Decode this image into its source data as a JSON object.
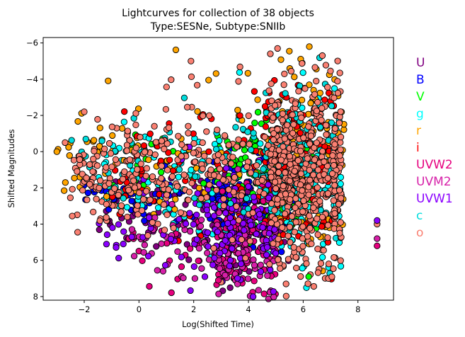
{
  "chart_data": {
    "type": "scatter",
    "title_line1": "Lightcurves for collection of 38 objects",
    "title_line2": "Type:SESNe, Subtype:SNIIb",
    "xlabel": "Log(Shifted Time)",
    "ylabel": "Shifted Magnitudes",
    "xlim": [
      -3.5,
      9.3
    ],
    "ylim": [
      -6.3,
      8.2
    ],
    "y_inverted": true,
    "x_ticks": [
      -2,
      0,
      2,
      4,
      6,
      8
    ],
    "x_tick_labels": [
      "−2",
      "0",
      "2",
      "4",
      "6",
      "8"
    ],
    "y_ticks": [
      -6,
      -4,
      -2,
      0,
      2,
      4,
      6,
      8
    ],
    "y_tick_labels": [
      "−6",
      "−4",
      "−2",
      "0",
      "2",
      "4",
      "6",
      "8"
    ],
    "grid": false,
    "legend_placement": "outside-right",
    "point_count_note": "approximate reconstruction of dense scatter",
    "series": [
      {
        "name": "U",
        "color": "#800080",
        "cloud": {
          "xmin": -1.5,
          "xmax": 5.5,
          "center": 2.2,
          "ymean": 3.5,
          "yspread": 1.6,
          "n": 140
        }
      },
      {
        "name": "B",
        "color": "#0000ff",
        "cloud": {
          "xmin": -2.1,
          "xmax": 5.7,
          "center": 2.5,
          "ymean": 2.5,
          "yspread": 1.0,
          "n": 180
        }
      },
      {
        "name": "V",
        "color": "#00ff00",
        "cloud": {
          "xmin": -1.0,
          "xmax": 6.5,
          "center": 3.5,
          "ymean": 1.0,
          "yspread": 1.4,
          "n": 150
        }
      },
      {
        "name": "g",
        "color": "#00ffff",
        "cloud": {
          "xmin": -1.5,
          "xmax": 7.4,
          "center": 5.0,
          "ymean": 1.5,
          "yspread": 2.0,
          "n": 260
        }
      },
      {
        "name": "r",
        "color": "#ffa500",
        "cloud": {
          "xmin": -3.0,
          "xmax": 7.5,
          "center": 5.0,
          "ymean": 0.5,
          "yspread": 2.2,
          "n": 240
        }
      },
      {
        "name": "i",
        "color": "#ff0000",
        "cloud": {
          "xmin": -1.0,
          "xmax": 7.2,
          "center": 4.5,
          "ymean": 1.2,
          "yspread": 2.0,
          "n": 200
        }
      },
      {
        "name": "UVW2",
        "color": "#e6007e",
        "cloud": {
          "xmin": -0.5,
          "xmax": 5.0,
          "center": 2.8,
          "ymean": 5.0,
          "yspread": 1.3,
          "n": 140
        }
      },
      {
        "name": "UVM2",
        "color": "#d61fa8",
        "cloud": {
          "xmin": -0.5,
          "xmax": 5.0,
          "center": 2.8,
          "ymean": 5.2,
          "yspread": 1.3,
          "n": 130
        }
      },
      {
        "name": "UVW1",
        "color": "#8b00ff",
        "cloud": {
          "xmin": -1.5,
          "xmax": 5.0,
          "center": 2.4,
          "ymean": 4.0,
          "yspread": 1.5,
          "n": 150
        }
      },
      {
        "name": "c",
        "color": "#00dddd",
        "cloud": {
          "xmin": -2.5,
          "xmax": 7.2,
          "center": 4.5,
          "ymean": 0.8,
          "yspread": 1.8,
          "n": 160
        }
      },
      {
        "name": "o",
        "color": "#fa8072",
        "cloud": {
          "xmin": -2.6,
          "xmax": 7.4,
          "center": 4.8,
          "ymean": 1.2,
          "yspread": 2.2,
          "n": 750
        }
      }
    ],
    "legend_colors": {
      "U": "#800080",
      "B": "#0000ff",
      "V": "#00ff00",
      "g": "#00ffff",
      "r": "#ffa500",
      "i": "#ff0000",
      "UVW2": "#e6007e",
      "UVM2": "#d61fa8",
      "UVW1": "#8b00ff",
      "c": "#00dddd",
      "o": "#fa8072"
    },
    "outliers": [
      {
        "series": "o",
        "x": 1.9,
        "y": -5.0
      },
      {
        "series": "o",
        "x": 4.8,
        "y": -5.4
      },
      {
        "series": "o",
        "x": 6.7,
        "y": -5.3
      },
      {
        "series": "r",
        "x": -3.0,
        "y": 0.0
      },
      {
        "series": "o",
        "x": -2.7,
        "y": -0.5
      },
      {
        "series": "o",
        "x": 8.7,
        "y": 4.0
      },
      {
        "series": "UVW1",
        "x": 8.7,
        "y": 3.8
      },
      {
        "series": "UVM2",
        "x": 8.7,
        "y": 4.8
      },
      {
        "series": "UVW2",
        "x": 8.7,
        "y": 5.2
      },
      {
        "series": "V",
        "x": 6.2,
        "y": 6.9
      },
      {
        "series": "o",
        "x": 3.0,
        "y": 7.2
      },
      {
        "series": "UVW2",
        "x": 2.9,
        "y": 7.1
      }
    ]
  }
}
